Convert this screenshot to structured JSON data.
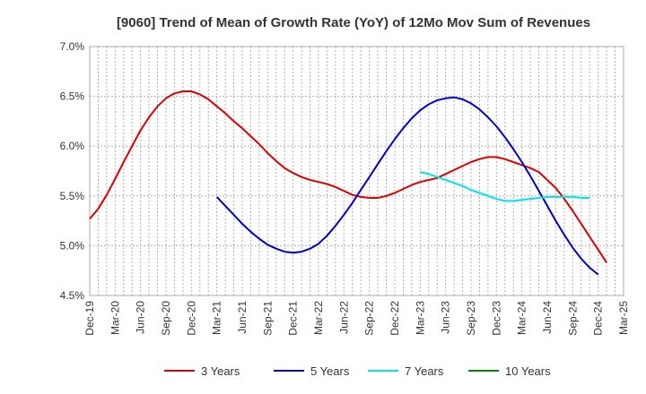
{
  "chart_data": {
    "type": "line",
    "title": "[9060]  Trend of Mean of Growth Rate (YoY) of 12Mo Mov Sum of Revenues",
    "xlabel": "",
    "ylabel": "",
    "ylim": [
      4.5,
      7.0
    ],
    "y_ticks": [
      4.5,
      5.0,
      5.5,
      6.0,
      6.5,
      7.0
    ],
    "y_tick_labels": [
      "4.5%",
      "5.0%",
      "5.5%",
      "6.0%",
      "6.5%",
      "7.0%"
    ],
    "x_tick_labels": [
      "Dec-19",
      "Mar-20",
      "Jun-20",
      "Sep-20",
      "Dec-20",
      "Mar-21",
      "Jun-21",
      "Sep-21",
      "Dec-21",
      "Mar-22",
      "Jun-22",
      "Sep-22",
      "Dec-22",
      "Mar-23",
      "Jun-23",
      "Sep-23",
      "Dec-23",
      "Mar-24",
      "Jun-24",
      "Sep-24",
      "Dec-24",
      "Mar-25"
    ],
    "x_range_months": [
      0,
      63
    ],
    "grid": true,
    "legend_position": "bottom",
    "series": [
      {
        "name": "3 Years",
        "color": "#dd0000",
        "points": [
          [
            0,
            5.27
          ],
          [
            1,
            5.37
          ],
          [
            2,
            5.51
          ],
          [
            3,
            5.67
          ],
          [
            4,
            5.84
          ],
          [
            5,
            6.0
          ],
          [
            6,
            6.16
          ],
          [
            7,
            6.29
          ],
          [
            8,
            6.4
          ],
          [
            9,
            6.48
          ],
          [
            10,
            6.53
          ],
          [
            11,
            6.55
          ],
          [
            12,
            6.55
          ],
          [
            13,
            6.52
          ],
          [
            14,
            6.47
          ],
          [
            15,
            6.4
          ],
          [
            16,
            6.33
          ],
          [
            17,
            6.25
          ],
          [
            18,
            6.18
          ],
          [
            19,
            6.1
          ],
          [
            20,
            6.02
          ],
          [
            21,
            5.93
          ],
          [
            22,
            5.85
          ],
          [
            23,
            5.78
          ],
          [
            24,
            5.73
          ],
          [
            25,
            5.69
          ],
          [
            26,
            5.66
          ],
          [
            27,
            5.64
          ],
          [
            28,
            5.62
          ],
          [
            29,
            5.59
          ],
          [
            30,
            5.55
          ],
          [
            31,
            5.51
          ],
          [
            32,
            5.49
          ],
          [
            33,
            5.48
          ],
          [
            34,
            5.48
          ],
          [
            35,
            5.5
          ],
          [
            36,
            5.53
          ],
          [
            37,
            5.57
          ],
          [
            38,
            5.61
          ],
          [
            39,
            5.64
          ],
          [
            40,
            5.66
          ],
          [
            41,
            5.68
          ],
          [
            42,
            5.72
          ],
          [
            43,
            5.76
          ],
          [
            44,
            5.8
          ],
          [
            45,
            5.84
          ],
          [
            46,
            5.87
          ],
          [
            47,
            5.89
          ],
          [
            48,
            5.89
          ],
          [
            49,
            5.87
          ],
          [
            50,
            5.84
          ],
          [
            51,
            5.81
          ],
          [
            52,
            5.78
          ],
          [
            53,
            5.74
          ],
          [
            54,
            5.66
          ],
          [
            55,
            5.58
          ],
          [
            56,
            5.47
          ],
          [
            57,
            5.35
          ],
          [
            58,
            5.22
          ],
          [
            59,
            5.09
          ],
          [
            60,
            4.96
          ],
          [
            61,
            4.83
          ]
        ]
      },
      {
        "name": "5 Years",
        "color": "#0000cc",
        "points": [
          [
            15,
            5.49
          ],
          [
            16,
            5.4
          ],
          [
            17,
            5.31
          ],
          [
            18,
            5.22
          ],
          [
            19,
            5.14
          ],
          [
            20,
            5.07
          ],
          [
            21,
            5.01
          ],
          [
            22,
            4.97
          ],
          [
            23,
            4.94
          ],
          [
            24,
            4.93
          ],
          [
            25,
            4.94
          ],
          [
            26,
            4.97
          ],
          [
            27,
            5.02
          ],
          [
            28,
            5.1
          ],
          [
            29,
            5.2
          ],
          [
            30,
            5.31
          ],
          [
            31,
            5.43
          ],
          [
            32,
            5.56
          ],
          [
            33,
            5.69
          ],
          [
            34,
            5.82
          ],
          [
            35,
            5.95
          ],
          [
            36,
            6.07
          ],
          [
            37,
            6.18
          ],
          [
            38,
            6.28
          ],
          [
            39,
            6.36
          ],
          [
            40,
            6.42
          ],
          [
            41,
            6.46
          ],
          [
            42,
            6.48
          ],
          [
            43,
            6.49
          ],
          [
            44,
            6.47
          ],
          [
            45,
            6.43
          ],
          [
            46,
            6.37
          ],
          [
            47,
            6.29
          ],
          [
            48,
            6.2
          ],
          [
            49,
            6.09
          ],
          [
            50,
            5.97
          ],
          [
            51,
            5.84
          ],
          [
            52,
            5.7
          ],
          [
            53,
            5.55
          ],
          [
            54,
            5.4
          ],
          [
            55,
            5.25
          ],
          [
            56,
            5.11
          ],
          [
            57,
            4.98
          ],
          [
            58,
            4.87
          ],
          [
            59,
            4.78
          ],
          [
            60,
            4.71
          ]
        ]
      },
      {
        "name": "7 Years",
        "color": "#00e5e5",
        "points": [
          [
            39,
            5.74
          ],
          [
            40,
            5.72
          ],
          [
            41,
            5.69
          ],
          [
            42,
            5.66
          ],
          [
            43,
            5.63
          ],
          [
            44,
            5.6
          ],
          [
            45,
            5.56
          ],
          [
            46,
            5.53
          ],
          [
            47,
            5.5
          ],
          [
            48,
            5.47
          ],
          [
            49,
            5.45
          ],
          [
            50,
            5.45
          ],
          [
            51,
            5.46
          ],
          [
            52,
            5.47
          ],
          [
            53,
            5.48
          ],
          [
            54,
            5.49
          ],
          [
            55,
            5.49
          ],
          [
            56,
            5.49
          ],
          [
            57,
            5.49
          ],
          [
            58,
            5.48
          ],
          [
            59,
            5.48
          ]
        ]
      },
      {
        "name": "10 Years",
        "color": "#008800",
        "points": []
      }
    ]
  }
}
